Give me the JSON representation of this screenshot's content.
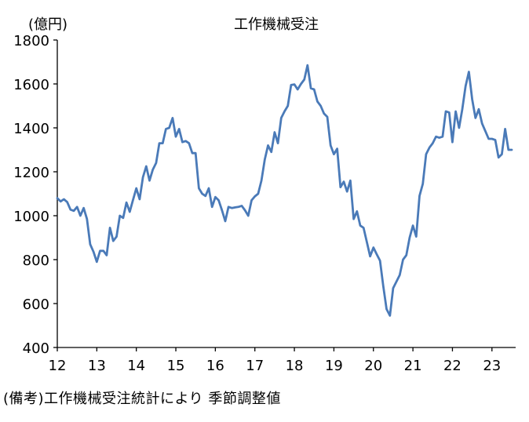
{
  "chart_data": {
    "type": "line",
    "title": "工作機械受注",
    "ylabel": "(億円)",
    "note": "(備考)工作機械受注統計により 季節調整値",
    "ylim": [
      400,
      1800
    ],
    "yticks": [
      400,
      600,
      800,
      1000,
      1200,
      1400,
      1600,
      1800
    ],
    "xlim": [
      12,
      23.6
    ],
    "xticks": [
      12,
      13,
      14,
      15,
      16,
      17,
      18,
      19,
      20,
      21,
      22,
      23
    ],
    "xtick_labels": [
      "12",
      "13",
      "14",
      "15",
      "16",
      "17",
      "18",
      "19",
      "20",
      "21",
      "22",
      "23"
    ],
    "grid": false,
    "series_color": "#4a7ab8",
    "series": [
      {
        "x": [
          12.0,
          12.083,
          12.167,
          12.25,
          12.333,
          12.417,
          12.5,
          12.583,
          12.667,
          12.75,
          12.833,
          12.917,
          13.0,
          13.083,
          13.167,
          13.25,
          13.333,
          13.417,
          13.5,
          13.583,
          13.667,
          13.75,
          13.833,
          13.917,
          14.0,
          14.083,
          14.167,
          14.25,
          14.333,
          14.417,
          14.5,
          14.583,
          14.667,
          14.75,
          14.833,
          14.917,
          15.0,
          15.083,
          15.167,
          15.25,
          15.333,
          15.417,
          15.5,
          15.583,
          15.667,
          15.75,
          15.833,
          15.917,
          16.0,
          16.083,
          16.167,
          16.25,
          16.333,
          16.417,
          16.5,
          16.583,
          16.667,
          16.75,
          16.833,
          16.917,
          17.0,
          17.083,
          17.167,
          17.25,
          17.333,
          17.417,
          17.5,
          17.583,
          17.667,
          17.75,
          17.833,
          17.917,
          18.0,
          18.083,
          18.167,
          18.25,
          18.333,
          18.417,
          18.5,
          18.583,
          18.667,
          18.75,
          18.833,
          18.917,
          19.0,
          19.083,
          19.167,
          19.25,
          19.333,
          19.417,
          19.5,
          19.583,
          19.667,
          19.75,
          19.833,
          19.917,
          20.0,
          20.083,
          20.167,
          20.25,
          20.333,
          20.417,
          20.5,
          20.583,
          20.667,
          20.75,
          20.833,
          20.917,
          21.0,
          21.083,
          21.167,
          21.25,
          21.333,
          21.417,
          21.5,
          21.583,
          21.667,
          21.75,
          21.833,
          21.917,
          22.0,
          22.083,
          22.167,
          22.25,
          22.333,
          22.417,
          22.5,
          22.583,
          22.667,
          22.75,
          22.833,
          22.917,
          23.0,
          23.083,
          23.167,
          23.25,
          23.333,
          23.417,
          23.5
        ],
        "y": [
          1080,
          1065,
          1075,
          1062,
          1028,
          1022,
          1040,
          1000,
          1035,
          985,
          870,
          835,
          790,
          840,
          840,
          820,
          945,
          885,
          905,
          1000,
          990,
          1060,
          1018,
          1072,
          1125,
          1075,
          1175,
          1225,
          1160,
          1210,
          1240,
          1330,
          1330,
          1395,
          1400,
          1445,
          1360,
          1395,
          1335,
          1340,
          1330,
          1285,
          1285,
          1125,
          1100,
          1090,
          1125,
          1040,
          1085,
          1070,
          1025,
          975,
          1040,
          1035,
          1038,
          1040,
          1045,
          1025,
          1000,
          1070,
          1088,
          1100,
          1160,
          1255,
          1320,
          1290,
          1380,
          1330,
          1445,
          1475,
          1500,
          1595,
          1598,
          1575,
          1600,
          1620,
          1685,
          1580,
          1575,
          1520,
          1500,
          1465,
          1450,
          1320,
          1280,
          1305,
          1130,
          1155,
          1110,
          1160,
          985,
          1020,
          955,
          945,
          880,
          815,
          855,
          825,
          795,
          680,
          575,
          545,
          670,
          700,
          730,
          800,
          820,
          900,
          955,
          905,
          1090,
          1145,
          1280,
          1310,
          1330,
          1360,
          1355,
          1360,
          1475,
          1470,
          1335,
          1475,
          1400,
          1485,
          1590,
          1655,
          1530,
          1445,
          1485,
          1420,
          1385,
          1350,
          1350,
          1345,
          1265,
          1280,
          1395,
          1300,
          1300
        ]
      }
    ]
  }
}
